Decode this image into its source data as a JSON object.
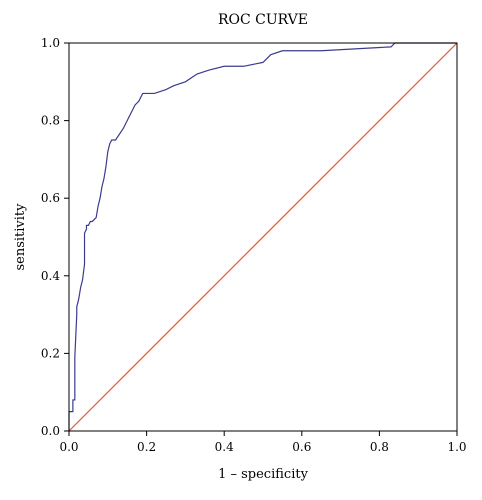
{
  "chart_data": {
    "type": "line",
    "title": "ROC CURVE",
    "xlabel": "1 – specificity",
    "ylabel": "sensitivity",
    "xlim": [
      0,
      1
    ],
    "ylim": [
      0,
      1
    ],
    "xticks": [
      "0.0",
      "0.2",
      "0.4",
      "0.6",
      "0.8",
      "1.0"
    ],
    "yticks": [
      "0.0",
      "0.2",
      "0.4",
      "0.6",
      "0.8",
      "1.0"
    ],
    "grid": false,
    "series": [
      {
        "color": "#3b3b8f",
        "x": [
          0.0,
          0.0,
          0.01,
          0.01,
          0.015,
          0.015,
          0.02,
          0.02,
          0.025,
          0.03,
          0.035,
          0.04,
          0.04,
          0.045,
          0.045,
          0.05,
          0.055,
          0.06,
          0.07,
          0.075,
          0.08,
          0.085,
          0.09,
          0.095,
          0.1,
          0.105,
          0.11,
          0.12,
          0.14,
          0.15,
          0.16,
          0.17,
          0.18,
          0.19,
          0.2,
          0.22,
          0.25,
          0.27,
          0.3,
          0.33,
          0.36,
          0.4,
          0.45,
          0.5,
          0.52,
          0.55,
          0.65,
          0.83,
          0.84,
          1.0
        ],
        "y": [
          0.0,
          0.05,
          0.05,
          0.08,
          0.08,
          0.19,
          0.3,
          0.32,
          0.34,
          0.37,
          0.39,
          0.43,
          0.51,
          0.52,
          0.53,
          0.53,
          0.54,
          0.54,
          0.55,
          0.58,
          0.6,
          0.63,
          0.65,
          0.68,
          0.72,
          0.74,
          0.75,
          0.75,
          0.78,
          0.8,
          0.82,
          0.84,
          0.85,
          0.87,
          0.87,
          0.87,
          0.88,
          0.89,
          0.9,
          0.92,
          0.93,
          0.94,
          0.94,
          0.95,
          0.97,
          0.98,
          0.98,
          0.99,
          1.0,
          1.0
        ]
      },
      {
        "color": "#e8552a",
        "x": [
          0,
          1
        ],
        "y": [
          0,
          1
        ]
      }
    ]
  }
}
